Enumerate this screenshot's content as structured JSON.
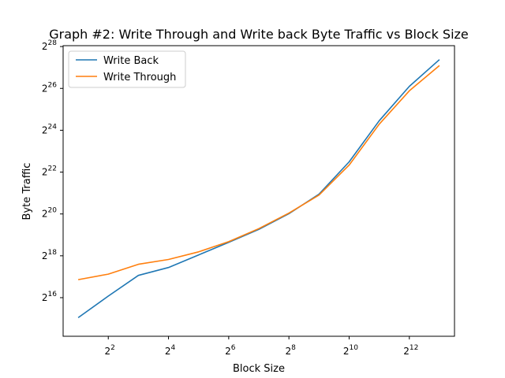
{
  "chart_data": {
    "type": "line",
    "title": "Graph #2: Write Through and Write back Byte Traffic vs Block Size",
    "xlabel": "Block Size",
    "ylabel": "Byte Traffic",
    "x_scale": "log2",
    "y_scale": "log2",
    "xlim": [
      1.4142,
      11585.2
    ],
    "ylim": [
      18243,
      276377000
    ],
    "x": [
      2,
      4,
      8,
      16,
      32,
      64,
      128,
      256,
      512,
      1024,
      2048,
      4096,
      8192
    ],
    "x_ticks": [
      {
        "value": 4,
        "base": "2",
        "exp": "2"
      },
      {
        "value": 16,
        "base": "2",
        "exp": "4"
      },
      {
        "value": 64,
        "base": "2",
        "exp": "6"
      },
      {
        "value": 256,
        "base": "2",
        "exp": "8"
      },
      {
        "value": 1024,
        "base": "2",
        "exp": "10"
      },
      {
        "value": 4096,
        "base": "2",
        "exp": "12"
      }
    ],
    "y_ticks": [
      {
        "value": 65536,
        "base": "2",
        "exp": "16"
      },
      {
        "value": 262144,
        "base": "2",
        "exp": "18"
      },
      {
        "value": 1048576,
        "base": "2",
        "exp": "20"
      },
      {
        "value": 4194304,
        "base": "2",
        "exp": "22"
      },
      {
        "value": 16777216,
        "base": "2",
        "exp": "24"
      },
      {
        "value": 67108864,
        "base": "2",
        "exp": "26"
      },
      {
        "value": 268435456,
        "base": "2",
        "exp": "28"
      }
    ],
    "legend_position": "top-left",
    "series": [
      {
        "name": "Write Back",
        "color": "#1f77b4",
        "values": [
          33800,
          69000,
          137000,
          178000,
          270000,
          410000,
          629000,
          1060000,
          2020000,
          5900000,
          23000000,
          72000000,
          174000000
        ]
      },
      {
        "name": "Write Through",
        "color": "#ff7f0e",
        "values": [
          119000,
          143000,
          198000,
          232000,
          299000,
          419000,
          646000,
          1080000,
          1960000,
          5300000,
          20500000,
          62000000,
          143000000
        ]
      }
    ]
  }
}
